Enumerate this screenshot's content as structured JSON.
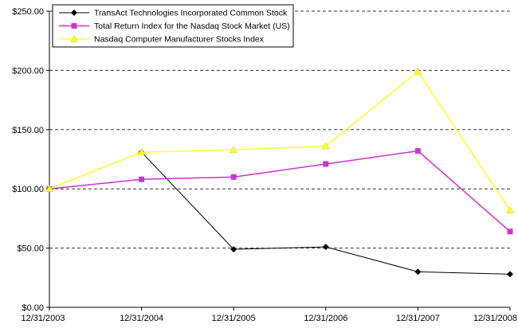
{
  "chart_data": {
    "type": "line",
    "title": "",
    "xlabel": "",
    "ylabel": "",
    "x": [
      "12/31/2003",
      "12/31/2004",
      "12/31/2005",
      "12/31/2006",
      "12/31/2007",
      "12/31/2008"
    ],
    "series": [
      {
        "name": "TransAct Technologies Incorporated Common Stock",
        "color": "#000000",
        "marker": "diamond",
        "values": [
          100,
          131,
          49,
          51,
          30,
          28
        ]
      },
      {
        "name": "Total Return Index for the Nasdaq Stock Market (US)",
        "color": "#cc33cc",
        "marker": "square",
        "values": [
          100,
          108,
          110,
          121,
          132,
          64
        ]
      },
      {
        "name": "Nasdaq Computer Manufacturer Stocks Index",
        "color": "#ffff2e",
        "marker": "triangle",
        "values": [
          100,
          131,
          133,
          136,
          199,
          82
        ]
      }
    ],
    "ylim": [
      0,
      250
    ],
    "yticks": [
      {
        "value": 0,
        "label": "$0.00"
      },
      {
        "value": 50,
        "label": "$50.00"
      },
      {
        "value": 100,
        "label": "$100.00"
      },
      {
        "value": 150,
        "label": "$150.00"
      },
      {
        "value": 200,
        "label": "$200.00"
      },
      {
        "value": 250,
        "label": "$250.00"
      }
    ],
    "grid": "dashed-horizontal",
    "legend_position": "top-left-inside"
  }
}
